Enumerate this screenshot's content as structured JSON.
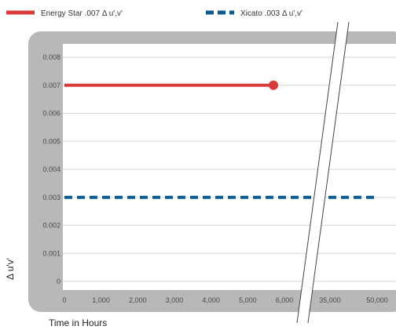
{
  "chart_data": {
    "type": "line",
    "title": "",
    "xlabel": "Time in Hours",
    "ylabel": "Δ u'v'",
    "xlim": [
      0,
      50000
    ],
    "ylim": [
      0,
      0.008
    ],
    "x_break": {
      "from": 6000,
      "to": 35000
    },
    "x_ticks": [
      "0",
      "1,000",
      "2,000",
      "3,000",
      "4,000",
      "5,000",
      "6,000",
      "35,000",
      "50,000"
    ],
    "x_tick_values": [
      0,
      1000,
      2000,
      3000,
      4000,
      5000,
      6000,
      35000,
      50000
    ],
    "y_ticks": [
      "0",
      "0.001",
      "0.002",
      "0.003",
      "0.004",
      "0.005",
      "0.006",
      "0.007",
      "0.008"
    ],
    "y_tick_values": [
      0,
      0.001,
      0.002,
      0.003,
      0.004,
      0.005,
      0.006,
      0.007,
      0.008
    ],
    "grid": true,
    "legend_position": "top-left",
    "series": [
      {
        "name": "Energy Star .007 Δ u',v'",
        "color": "#d93a3a",
        "style": "solid",
        "x": [
          0,
          5700
        ],
        "y": [
          0.007,
          0.007
        ],
        "end_marker": true
      },
      {
        "name": "Xicato .003 Δ u',v'",
        "color": "#0d5a92",
        "style": "dashed",
        "x": [
          0,
          50000
        ],
        "y": [
          0.003,
          0.003
        ],
        "end_marker": false
      }
    ]
  }
}
